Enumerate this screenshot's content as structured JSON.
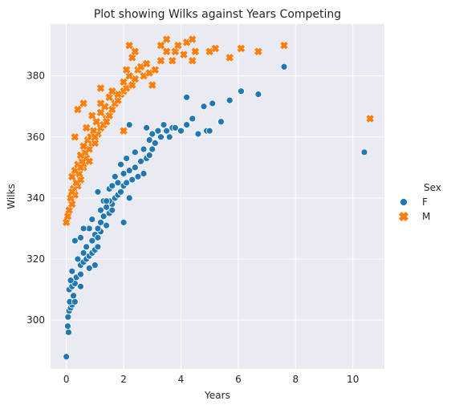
{
  "chart_data": {
    "type": "scatter",
    "title": "Plot showing Wilks against Years Competing",
    "xlabel": "Years",
    "ylabel": "Wilks",
    "xlim": [
      -0.55,
      11.1
    ],
    "ylim": [
      284,
      397
    ],
    "xticks": [
      0,
      2,
      4,
      6,
      8,
      10
    ],
    "yticks": [
      300,
      320,
      340,
      360,
      380
    ],
    "grid": true,
    "legend": {
      "title": "Sex",
      "placement": "right"
    },
    "series": [
      {
        "name": "F",
        "marker": "circle",
        "color": "#1f77b4",
        "points": [
          [
            0.0,
            288
          ],
          [
            0.08,
            296
          ],
          [
            0.05,
            298
          ],
          [
            0.06,
            301
          ],
          [
            0.1,
            303
          ],
          [
            0.15,
            304
          ],
          [
            0.2,
            305
          ],
          [
            0.12,
            306
          ],
          [
            0.3,
            306
          ],
          [
            0.25,
            308
          ],
          [
            0.1,
            310
          ],
          [
            0.2,
            311
          ],
          [
            0.3,
            312
          ],
          [
            0.15,
            313
          ],
          [
            0.35,
            314
          ],
          [
            0.5,
            315
          ],
          [
            0.2,
            316
          ],
          [
            0.5,
            318
          ],
          [
            0.6,
            319
          ],
          [
            0.7,
            320
          ],
          [
            0.4,
            320
          ],
          [
            0.8,
            321
          ],
          [
            0.6,
            322
          ],
          [
            0.9,
            322
          ],
          [
            1.0,
            323
          ],
          [
            0.7,
            324
          ],
          [
            1.1,
            324
          ],
          [
            0.3,
            326
          ],
          [
            0.5,
            327
          ],
          [
            0.9,
            326
          ],
          [
            1.0,
            328
          ],
          [
            1.2,
            329
          ],
          [
            0.8,
            330
          ],
          [
            1.1,
            330
          ],
          [
            0.6,
            330
          ],
          [
            1.4,
            331
          ],
          [
            1.2,
            332
          ],
          [
            0.9,
            333
          ],
          [
            1.3,
            334
          ],
          [
            1.5,
            335
          ],
          [
            1.2,
            336
          ],
          [
            1.4,
            337
          ],
          [
            1.6,
            338
          ],
          [
            1.3,
            339
          ],
          [
            1.5,
            339
          ],
          [
            1.7,
            340
          ],
          [
            1.8,
            341
          ],
          [
            1.9,
            342
          ],
          [
            1.5,
            343
          ],
          [
            2.0,
            344
          ],
          [
            1.6,
            344
          ],
          [
            1.8,
            345
          ],
          [
            2.1,
            345
          ],
          [
            2.3,
            346
          ],
          [
            1.7,
            347
          ],
          [
            2.5,
            347
          ],
          [
            2.0,
            348
          ],
          [
            2.7,
            348
          ],
          [
            2.2,
            349
          ],
          [
            2.4,
            350
          ],
          [
            1.9,
            351
          ],
          [
            2.6,
            352
          ],
          [
            2.1,
            353
          ],
          [
            2.8,
            353
          ],
          [
            2.9,
            354
          ],
          [
            2.4,
            355
          ],
          [
            3.0,
            356
          ],
          [
            2.7,
            356
          ],
          [
            3.1,
            358
          ],
          [
            2.9,
            359
          ],
          [
            3.3,
            360
          ],
          [
            3.6,
            360
          ],
          [
            3.0,
            361
          ],
          [
            3.5,
            362
          ],
          [
            4.0,
            362
          ],
          [
            3.2,
            362
          ],
          [
            3.7,
            363
          ],
          [
            2.8,
            363
          ],
          [
            4.2,
            364
          ],
          [
            2.2,
            364
          ],
          [
            3.4,
            364
          ],
          [
            3.8,
            363
          ],
          [
            4.6,
            361
          ],
          [
            4.9,
            362
          ],
          [
            5.0,
            362
          ],
          [
            4.4,
            366
          ],
          [
            5.4,
            365
          ],
          [
            4.8,
            370
          ],
          [
            5.1,
            371
          ],
          [
            5.7,
            372
          ],
          [
            4.2,
            373
          ],
          [
            6.1,
            375
          ],
          [
            6.7,
            374
          ],
          [
            7.6,
            383
          ],
          [
            10.4,
            355
          ],
          [
            1.0,
            318
          ],
          [
            0.5,
            311
          ],
          [
            0.8,
            317
          ],
          [
            1.1,
            327
          ],
          [
            1.6,
            336
          ],
          [
            2.0,
            332
          ],
          [
            1.4,
            339
          ],
          [
            2.2,
            340
          ],
          [
            1.1,
            342
          ]
        ]
      },
      {
        "name": "M",
        "marker": "x",
        "color": "#ff7f0e",
        "points": [
          [
            0.0,
            332
          ],
          [
            0.05,
            334
          ],
          [
            0.1,
            336
          ],
          [
            0.2,
            338
          ],
          [
            0.15,
            340
          ],
          [
            0.3,
            341
          ],
          [
            0.25,
            343
          ],
          [
            0.4,
            344
          ],
          [
            0.35,
            345
          ],
          [
            0.5,
            346
          ],
          [
            0.2,
            347
          ],
          [
            0.45,
            348
          ],
          [
            0.3,
            349
          ],
          [
            0.6,
            350
          ],
          [
            0.4,
            351
          ],
          [
            0.55,
            352
          ],
          [
            0.7,
            353
          ],
          [
            0.5,
            354
          ],
          [
            0.65,
            355
          ],
          [
            0.8,
            356
          ],
          [
            0.6,
            357
          ],
          [
            0.9,
            358
          ],
          [
            1.0,
            358
          ],
          [
            0.75,
            359
          ],
          [
            0.3,
            360
          ],
          [
            0.85,
            360
          ],
          [
            1.1,
            361
          ],
          [
            0.95,
            362
          ],
          [
            1.2,
            363
          ],
          [
            0.7,
            363
          ],
          [
            1.3,
            364
          ],
          [
            1.05,
            365
          ],
          [
            1.4,
            366
          ],
          [
            0.9,
            367
          ],
          [
            1.5,
            367
          ],
          [
            1.2,
            368
          ],
          [
            0.4,
            369
          ],
          [
            1.6,
            369
          ],
          [
            1.35,
            370
          ],
          [
            1.7,
            371
          ],
          [
            0.6,
            371
          ],
          [
            1.8,
            372
          ],
          [
            1.5,
            373
          ],
          [
            1.9,
            374
          ],
          [
            2.0,
            375
          ],
          [
            1.2,
            376
          ],
          [
            2.1,
            376
          ],
          [
            2.3,
            377
          ],
          [
            2.0,
            378
          ],
          [
            2.4,
            379
          ],
          [
            2.7,
            380
          ],
          [
            2.2,
            380
          ],
          [
            2.9,
            381
          ],
          [
            2.5,
            382
          ],
          [
            3.1,
            382
          ],
          [
            2.6,
            383
          ],
          [
            2.8,
            384
          ],
          [
            3.3,
            385
          ],
          [
            3.7,
            385
          ],
          [
            4.4,
            385
          ],
          [
            2.3,
            386
          ],
          [
            4.1,
            387
          ],
          [
            2.4,
            388
          ],
          [
            3.8,
            388
          ],
          [
            4.5,
            388
          ],
          [
            5.0,
            388
          ],
          [
            5.7,
            386
          ],
          [
            3.5,
            388
          ],
          [
            5.2,
            389
          ],
          [
            6.1,
            389
          ],
          [
            6.7,
            388
          ],
          [
            7.6,
            390
          ],
          [
            3.3,
            390
          ],
          [
            3.9,
            390
          ],
          [
            4.2,
            391
          ],
          [
            2.2,
            390
          ],
          [
            3.5,
            392
          ],
          [
            4.4,
            392
          ],
          [
            10.6,
            366
          ],
          [
            3.0,
            377
          ],
          [
            2.1,
            382
          ],
          [
            1.8,
            374
          ],
          [
            1.4,
            365
          ],
          [
            1.0,
            360
          ],
          [
            0.8,
            352
          ],
          [
            0.5,
            350
          ],
          [
            0.2,
            342
          ],
          [
            1.2,
            371
          ],
          [
            1.6,
            375
          ],
          [
            2.0,
            362
          ]
        ]
      }
    ]
  }
}
